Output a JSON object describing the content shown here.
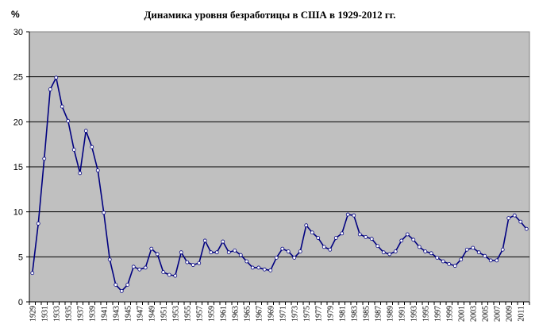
{
  "chart_data": {
    "type": "line",
    "title": "Динамика уровня безработицы в США в 1929-2012 гг.",
    "ylabel": "%",
    "xlabel": "",
    "ylim": [
      0,
      30
    ],
    "y_ticks": [
      "0",
      "5",
      "10",
      "15",
      "20",
      "25",
      "30"
    ],
    "x_tick_labels": [
      "1929",
      "1931",
      "1933",
      "1935",
      "1937",
      "1939",
      "1941",
      "1943",
      "1945",
      "1947",
      "1949",
      "1951",
      "1953",
      "1955",
      "1957",
      "1959",
      "1961",
      "1963",
      "1965",
      "1967",
      "1969",
      "1971",
      "1973",
      "1975",
      "1977",
      "1979",
      "1981",
      "1983",
      "1985",
      "1987",
      "1989",
      "1991",
      "1993",
      "1995",
      "1997",
      "1999",
      "2001",
      "2003",
      "2005",
      "2007",
      "2009",
      "2011"
    ],
    "grid": true,
    "legend": "none",
    "colors": {
      "line": "#000080",
      "plot_bg": "#c0c0c0",
      "grid": "#000000",
      "marker_fill": "#ffffff"
    },
    "x": [
      1929,
      1930,
      1931,
      1932,
      1933,
      1934,
      1935,
      1936,
      1937,
      1938,
      1939,
      1940,
      1941,
      1942,
      1943,
      1944,
      1945,
      1946,
      1947,
      1948,
      1949,
      1950,
      1951,
      1952,
      1953,
      1954,
      1955,
      1956,
      1957,
      1958,
      1959,
      1960,
      1961,
      1962,
      1963,
      1964,
      1965,
      1966,
      1967,
      1968,
      1969,
      1970,
      1971,
      1972,
      1973,
      1974,
      1975,
      1976,
      1977,
      1978,
      1979,
      1980,
      1981,
      1982,
      1983,
      1984,
      1985,
      1986,
      1987,
      1988,
      1989,
      1990,
      1991,
      1992,
      1993,
      1994,
      1995,
      1996,
      1997,
      1998,
      1999,
      2000,
      2001,
      2002,
      2003,
      2004,
      2005,
      2006,
      2007,
      2008,
      2009,
      2010,
      2011,
      2012
    ],
    "values": [
      3.2,
      8.7,
      15.9,
      23.6,
      24.9,
      21.7,
      20.1,
      16.9,
      14.3,
      19.0,
      17.2,
      14.6,
      9.9,
      4.7,
      1.9,
      1.2,
      1.9,
      3.9,
      3.6,
      3.8,
      5.9,
      5.3,
      3.3,
      3.0,
      2.9,
      5.5,
      4.4,
      4.1,
      4.3,
      6.8,
      5.5,
      5.5,
      6.7,
      5.5,
      5.7,
      5.2,
      4.5,
      3.8,
      3.8,
      3.6,
      3.5,
      4.9,
      5.9,
      5.6,
      4.9,
      5.6,
      8.5,
      7.7,
      7.1,
      6.1,
      5.8,
      7.1,
      7.6,
      9.7,
      9.6,
      7.5,
      7.2,
      7.0,
      6.2,
      5.5,
      5.3,
      5.6,
      6.8,
      7.5,
      6.9,
      6.1,
      5.6,
      5.4,
      4.9,
      4.5,
      4.2,
      4.0,
      4.7,
      5.8,
      6.0,
      5.5,
      5.1,
      4.6,
      4.6,
      5.8,
      9.3,
      9.6,
      8.9,
      8.1
    ]
  }
}
